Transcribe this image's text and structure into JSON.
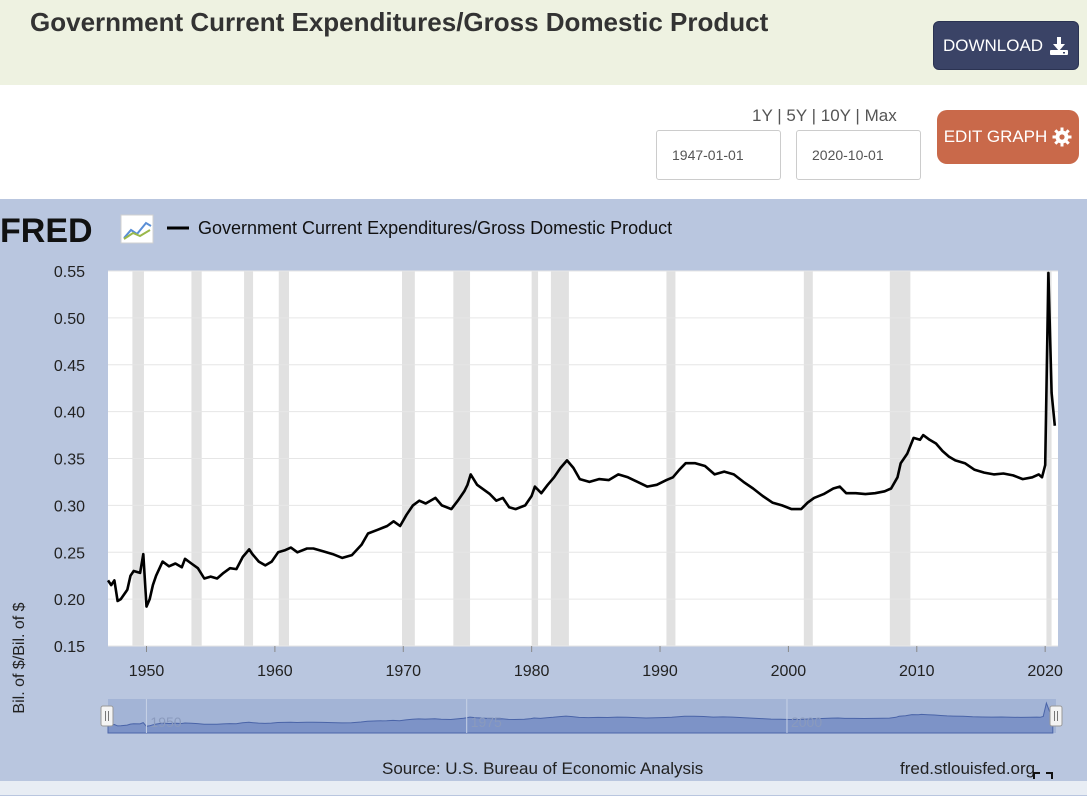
{
  "header": {
    "title": "Government Current Expenditures/Gross Domestic Product",
    "download_label": "DOWNLOAD"
  },
  "controls": {
    "range_links": [
      "1Y",
      "5Y",
      "10Y",
      "Max"
    ],
    "separator": " | ",
    "start_date": "1947-01-01",
    "end_date": "2020-10-01",
    "edit_label": "EDIT GRAPH"
  },
  "graph": {
    "logo_text": "FRED",
    "legend_label": "Government Current Expenditures/Gross Domestic Product",
    "source_text": "Source: U.S. Bureau of Economic Analysis",
    "site_text": "fred.stlouisfed.org",
    "colors": {
      "series": "#000000",
      "recession": "#e1e1e1",
      "plot_bg": "#ffffff",
      "panel_bg": "#b9c6df",
      "navigator": "#7d93c7"
    }
  },
  "chart_data": {
    "type": "line",
    "title": "Government Current Expenditures/Gross Domestic Product",
    "ylabel": "Bil. of $/Bil. of $",
    "xlabel": "",
    "xlim": [
      1947.0,
      2021.0
    ],
    "ylim": [
      0.15,
      0.55
    ],
    "y_ticks": [
      "0.55",
      "0.50",
      "0.45",
      "0.40",
      "0.35",
      "0.30",
      "0.25",
      "0.20",
      "0.15"
    ],
    "y_tick_values": [
      0.55,
      0.5,
      0.45,
      0.4,
      0.35,
      0.3,
      0.25,
      0.2,
      0.15
    ],
    "x_ticks": [
      "1950",
      "1960",
      "1970",
      "1980",
      "1990",
      "2000",
      "2010",
      "2020"
    ],
    "x_tick_values": [
      1950,
      1960,
      1970,
      1980,
      1990,
      2000,
      2010,
      2020
    ],
    "navigator_ticks": [
      "1950",
      "1975",
      "2000"
    ],
    "navigator_tick_values": [
      1950,
      1975,
      2000
    ],
    "recessions": [
      [
        1948.9,
        1949.8
      ],
      [
        1953.5,
        1954.3
      ],
      [
        1957.6,
        1958.3
      ],
      [
        1960.3,
        1961.1
      ],
      [
        1969.9,
        1970.9
      ],
      [
        1973.9,
        1975.2
      ],
      [
        1980.0,
        1980.5
      ],
      [
        1981.5,
        1982.9
      ],
      [
        1990.5,
        1991.2
      ],
      [
        2001.2,
        2001.9
      ],
      [
        2007.9,
        2009.5
      ],
      [
        2020.1,
        2020.5
      ]
    ],
    "series": [
      {
        "name": "Government Current Expenditures/Gross Domestic Product",
        "x": [
          1947.0,
          1947.25,
          1947.5,
          1947.75,
          1948.0,
          1948.5,
          1948.75,
          1949.0,
          1949.5,
          1949.75,
          1950.0,
          1950.25,
          1950.5,
          1950.75,
          1951.25,
          1951.75,
          1952.25,
          1952.75,
          1953.0,
          1953.5,
          1954.0,
          1954.5,
          1955.0,
          1955.5,
          1956.0,
          1956.5,
          1957.0,
          1957.5,
          1958.0,
          1958.25,
          1958.75,
          1959.25,
          1959.75,
          1960.25,
          1960.75,
          1961.25,
          1961.75,
          1962.5,
          1963.0,
          1963.75,
          1964.5,
          1965.25,
          1966.0,
          1966.75,
          1967.25,
          1968.0,
          1968.75,
          1969.25,
          1969.75,
          1970.25,
          1970.75,
          1971.25,
          1971.75,
          1972.5,
          1973.0,
          1973.75,
          1974.25,
          1974.75,
          1975.0,
          1975.25,
          1975.75,
          1976.25,
          1976.75,
          1977.25,
          1977.75,
          1978.25,
          1978.75,
          1979.5,
          1980.0,
          1980.25,
          1980.75,
          1981.25,
          1981.75,
          1982.25,
          1982.75,
          1983.25,
          1983.75,
          1984.5,
          1985.25,
          1986.0,
          1986.75,
          1987.5,
          1988.25,
          1989.0,
          1989.75,
          1990.5,
          1991.0,
          1991.5,
          1992.0,
          1992.75,
          1993.5,
          1994.25,
          1995.0,
          1995.75,
          1996.5,
          1997.25,
          1998.0,
          1998.75,
          1999.5,
          2000.25,
          2001.0,
          2001.5,
          2002.0,
          2002.75,
          2003.5,
          2004.0,
          2004.5,
          2005.25,
          2006.0,
          2006.75,
          2007.5,
          2008.0,
          2008.5,
          2008.75,
          2009.25,
          2009.75,
          2010.25,
          2010.5,
          2011.0,
          2011.5,
          2012.0,
          2012.5,
          2013.0,
          2013.75,
          2014.5,
          2015.25,
          2016.0,
          2016.75,
          2017.5,
          2018.25,
          2019.0,
          2019.5,
          2019.75,
          2020.0,
          2020.25,
          2020.5,
          2020.75
        ],
        "y": [
          0.22,
          0.215,
          0.22,
          0.198,
          0.2,
          0.21,
          0.225,
          0.23,
          0.228,
          0.248,
          0.192,
          0.2,
          0.215,
          0.225,
          0.24,
          0.235,
          0.238,
          0.234,
          0.243,
          0.238,
          0.233,
          0.222,
          0.224,
          0.222,
          0.228,
          0.233,
          0.232,
          0.245,
          0.253,
          0.248,
          0.24,
          0.236,
          0.24,
          0.25,
          0.252,
          0.255,
          0.25,
          0.254,
          0.254,
          0.251,
          0.248,
          0.244,
          0.247,
          0.258,
          0.27,
          0.274,
          0.278,
          0.283,
          0.278,
          0.29,
          0.3,
          0.305,
          0.302,
          0.308,
          0.3,
          0.296,
          0.305,
          0.315,
          0.322,
          0.333,
          0.322,
          0.317,
          0.312,
          0.305,
          0.308,
          0.298,
          0.296,
          0.3,
          0.31,
          0.32,
          0.313,
          0.322,
          0.33,
          0.34,
          0.348,
          0.34,
          0.328,
          0.325,
          0.328,
          0.327,
          0.333,
          0.33,
          0.325,
          0.32,
          0.322,
          0.327,
          0.33,
          0.338,
          0.345,
          0.345,
          0.342,
          0.333,
          0.336,
          0.333,
          0.325,
          0.318,
          0.31,
          0.303,
          0.3,
          0.296,
          0.296,
          0.303,
          0.308,
          0.312,
          0.318,
          0.32,
          0.313,
          0.313,
          0.312,
          0.313,
          0.315,
          0.318,
          0.33,
          0.345,
          0.355,
          0.372,
          0.37,
          0.375,
          0.37,
          0.366,
          0.358,
          0.352,
          0.348,
          0.345,
          0.338,
          0.335,
          0.333,
          0.334,
          0.332,
          0.328,
          0.33,
          0.333,
          0.33,
          0.343,
          0.548,
          0.42,
          0.385
        ]
      }
    ]
  }
}
